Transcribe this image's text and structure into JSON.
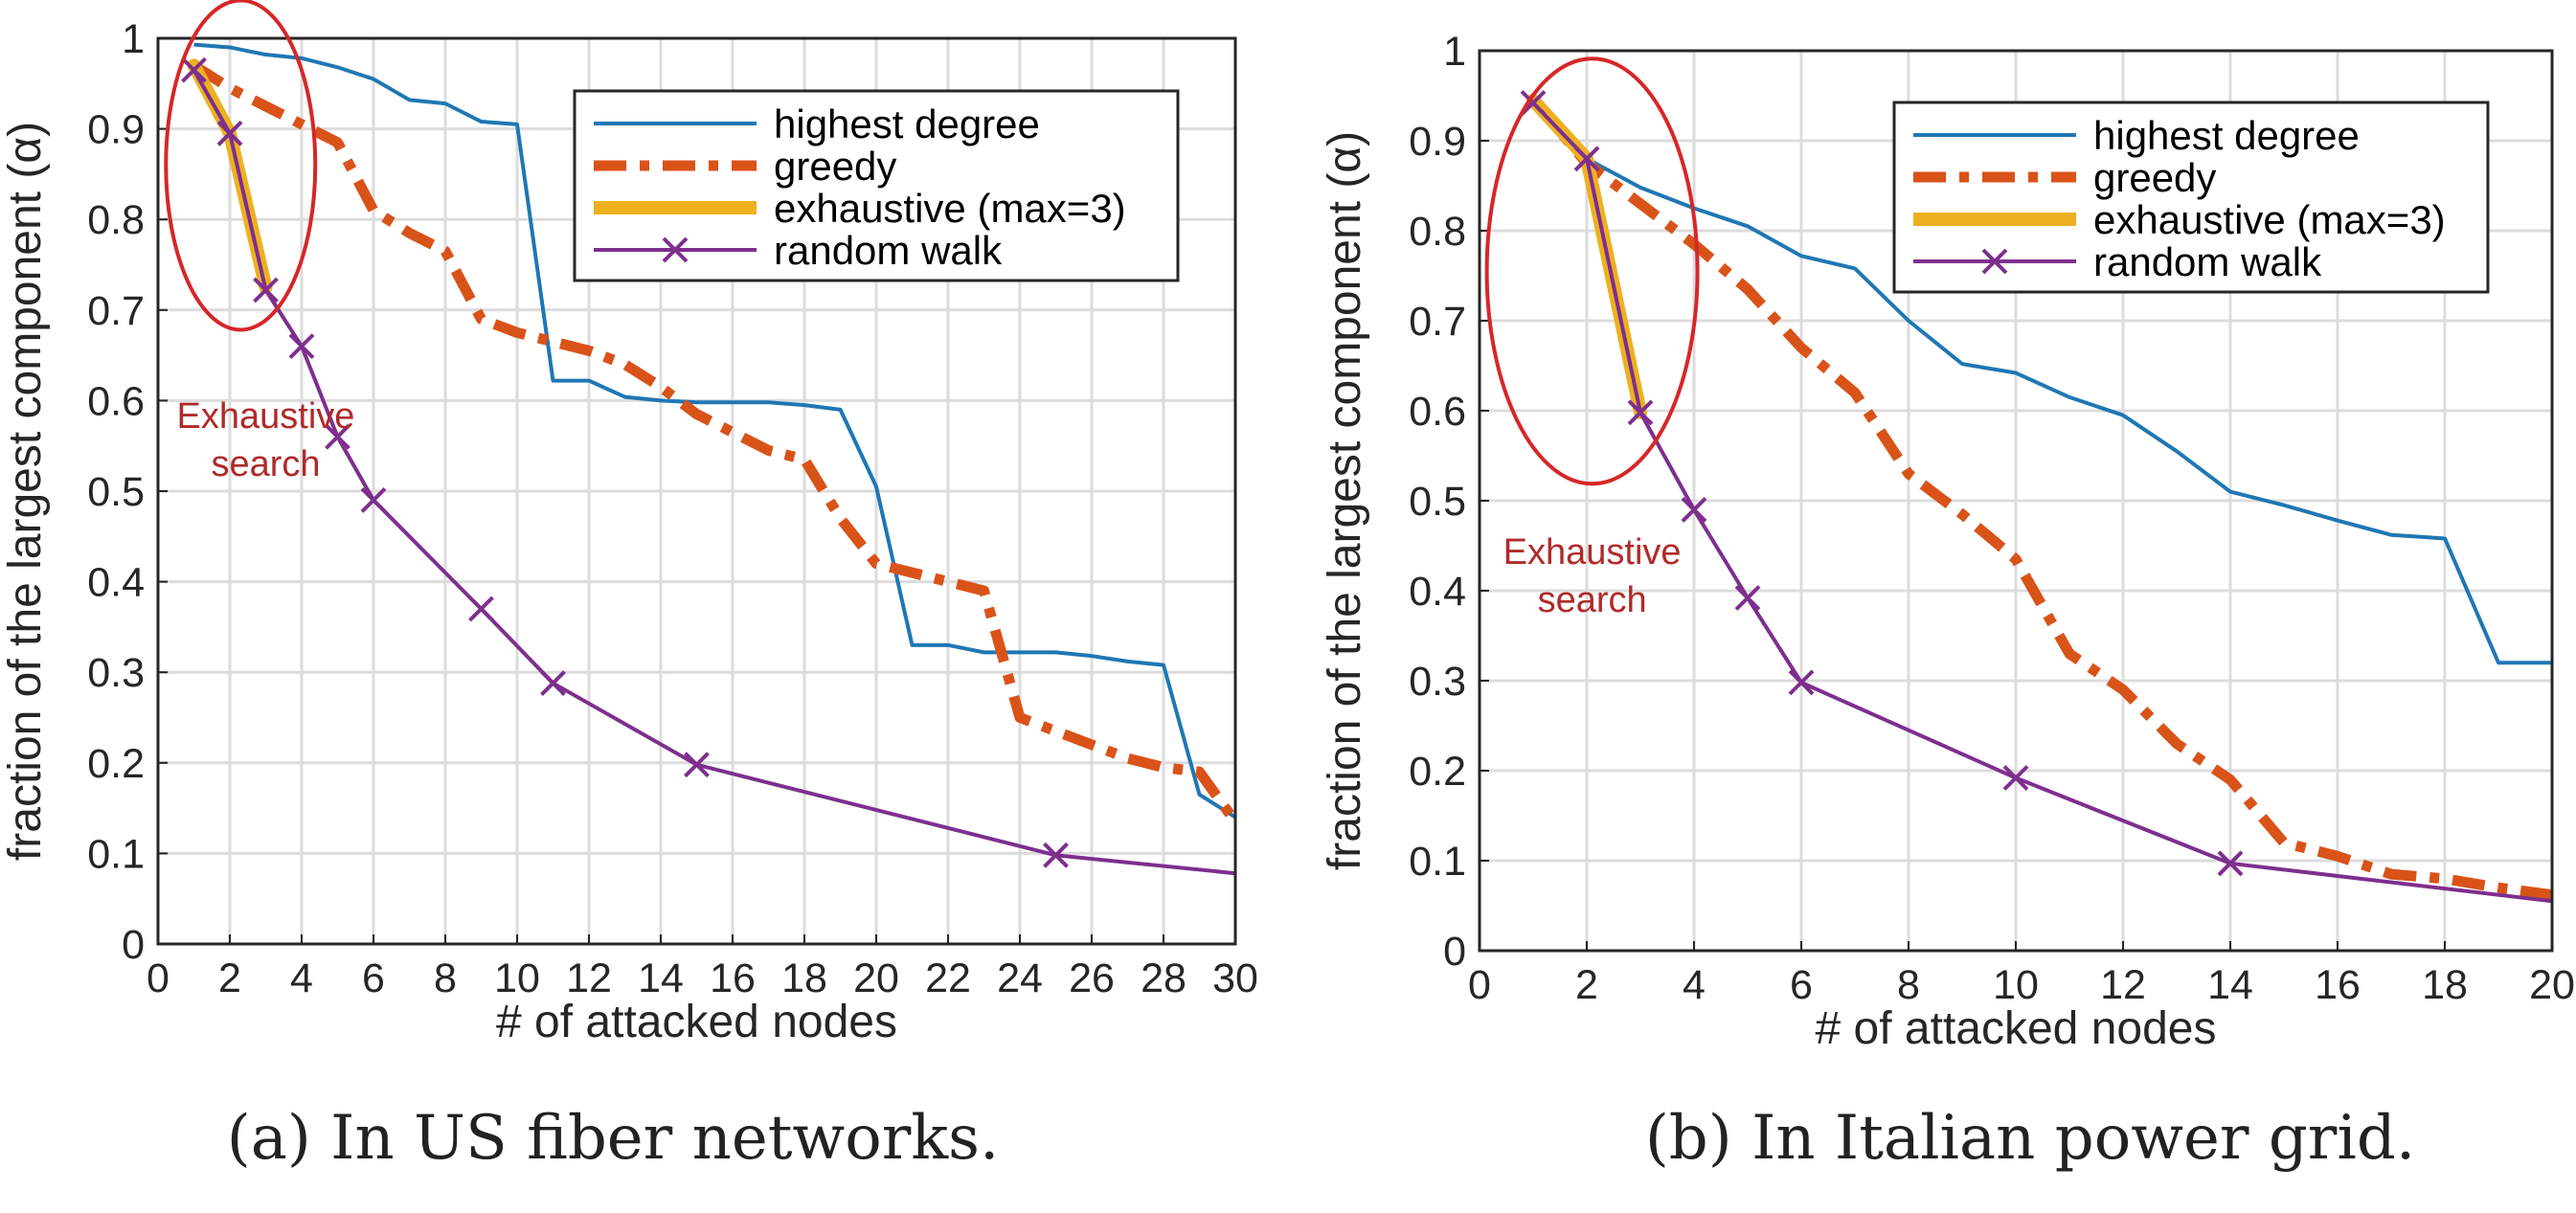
{
  "colors": {
    "highest_degree": "#1f77b4",
    "greedy": "#d95319",
    "exhaustive": "#edb120",
    "random_walk": "#7e2f8e",
    "annotation": "#d62728"
  },
  "chart_data": [
    {
      "type": "line",
      "caption": "(a) In US fiber networks.",
      "xlabel": "# of attacked nodes",
      "ylabel": "fraction of the largest component (α)",
      "xlim": [
        0,
        30
      ],
      "ylim": [
        0,
        1
      ],
      "xticks": [
        0,
        2,
        4,
        6,
        8,
        10,
        12,
        14,
        16,
        18,
        20,
        22,
        24,
        26,
        28,
        30
      ],
      "yticks": [
        0,
        0.1,
        0.2,
        0.3,
        0.4,
        0.5,
        0.6,
        0.7,
        0.8,
        0.9,
        1
      ],
      "grid": true,
      "legend_position": "top-right",
      "annotation": {
        "text_lines": [
          "Exhaustive",
          "search"
        ],
        "ellipse_center": [
          2.3,
          0.86
        ],
        "text_anchor": [
          3,
          0.57
        ]
      },
      "series": [
        {
          "name": "highest degree",
          "key": "highest_degree",
          "x": [
            1,
            2,
            3,
            4,
            5,
            6,
            7,
            8,
            9,
            10,
            11,
            12,
            13,
            14,
            15,
            16,
            17,
            18,
            19,
            20,
            21,
            22,
            23,
            24,
            25,
            26,
            27,
            28,
            29,
            30
          ],
          "y": [
            0.993,
            0.99,
            0.982,
            0.978,
            0.968,
            0.955,
            0.932,
            0.928,
            0.908,
            0.905,
            0.622,
            0.622,
            0.604,
            0.6,
            0.598,
            0.598,
            0.598,
            0.595,
            0.59,
            0.505,
            0.33,
            0.33,
            0.322,
            0.322,
            0.322,
            0.318,
            0.312,
            0.308,
            0.165,
            0.14
          ]
        },
        {
          "name": "greedy",
          "key": "greedy",
          "x": [
            1,
            2,
            3,
            4,
            5,
            6,
            7,
            8,
            9,
            10,
            11,
            12,
            13,
            14,
            15,
            16,
            17,
            18,
            19,
            20,
            21,
            22,
            23,
            24,
            25,
            26,
            27,
            28,
            29,
            30
          ],
          "y": [
            0.97,
            0.945,
            0.925,
            0.905,
            0.885,
            0.81,
            0.785,
            0.765,
            0.69,
            0.675,
            0.665,
            0.655,
            0.64,
            0.615,
            0.585,
            0.565,
            0.545,
            0.535,
            0.47,
            0.42,
            0.41,
            0.4,
            0.39,
            0.25,
            0.235,
            0.22,
            0.205,
            0.195,
            0.19,
            0.135
          ]
        },
        {
          "name": "exhaustive (max=3)",
          "key": "exhaustive",
          "x": [
            1,
            2,
            3
          ],
          "y": [
            0.97,
            0.895,
            0.725
          ]
        },
        {
          "name": "random walk",
          "key": "random_walk",
          "x": [
            1,
            2,
            3,
            4,
            5,
            6,
            9,
            11,
            15,
            25,
            30
          ],
          "y": [
            0.965,
            0.895,
            0.722,
            0.66,
            0.56,
            0.49,
            0.37,
            0.288,
            0.198,
            0.098,
            0.078
          ],
          "markers": [
            1,
            2,
            3,
            4,
            5,
            6,
            9,
            11,
            15,
            25
          ]
        }
      ]
    },
    {
      "type": "line",
      "caption": "(b) In Italian power grid.",
      "xlabel": "# of attacked nodes",
      "ylabel": "fraction of the largest component (α)",
      "xlim": [
        0,
        20
      ],
      "ylim": [
        0,
        1
      ],
      "xticks": [
        0,
        2,
        4,
        6,
        8,
        10,
        12,
        14,
        16,
        18,
        20
      ],
      "yticks": [
        0,
        0.1,
        0.2,
        0.3,
        0.4,
        0.5,
        0.6,
        0.7,
        0.8,
        0.9,
        1
      ],
      "grid": true,
      "legend_position": "top-right",
      "annotation": {
        "text_lines": [
          "Exhaustive",
          "search"
        ],
        "ellipse_center": [
          2.1,
          0.755
        ],
        "text_anchor": [
          2.1,
          0.43
        ]
      },
      "series": [
        {
          "name": "highest degree",
          "key": "highest_degree",
          "x": [
            1,
            2,
            3,
            4,
            5,
            6,
            7,
            8,
            9,
            10,
            11,
            12,
            13,
            14,
            15,
            16,
            17,
            18,
            19,
            20
          ],
          "y": [
            0.945,
            0.88,
            0.848,
            0.825,
            0.805,
            0.772,
            0.758,
            0.7,
            0.652,
            0.642,
            0.615,
            0.595,
            0.555,
            0.51,
            0.495,
            0.478,
            0.462,
            0.458,
            0.32,
            0.32
          ]
        },
        {
          "name": "greedy",
          "key": "greedy",
          "x": [
            1,
            2,
            3,
            4,
            5,
            6,
            7,
            8,
            9,
            10,
            11,
            12,
            13,
            14,
            15,
            16,
            17,
            18,
            19,
            20
          ],
          "y": [
            0.945,
            0.875,
            0.83,
            0.785,
            0.735,
            0.67,
            0.62,
            0.53,
            0.485,
            0.435,
            0.33,
            0.29,
            0.23,
            0.19,
            0.12,
            0.105,
            0.085,
            0.08,
            0.07,
            0.062
          ]
        },
        {
          "name": "exhaustive (max=3)",
          "key": "exhaustive",
          "x": [
            1,
            2,
            3
          ],
          "y": [
            0.945,
            0.88,
            0.598
          ]
        },
        {
          "name": "random walk",
          "key": "random_walk",
          "x": [
            1,
            2,
            3,
            4,
            5,
            6,
            10,
            14,
            20
          ],
          "y": [
            0.942,
            0.88,
            0.598,
            0.49,
            0.392,
            0.298,
            0.192,
            0.097,
            0.055
          ],
          "markers": [
            1,
            2,
            3,
            4,
            5,
            6,
            10,
            14
          ]
        }
      ]
    }
  ]
}
